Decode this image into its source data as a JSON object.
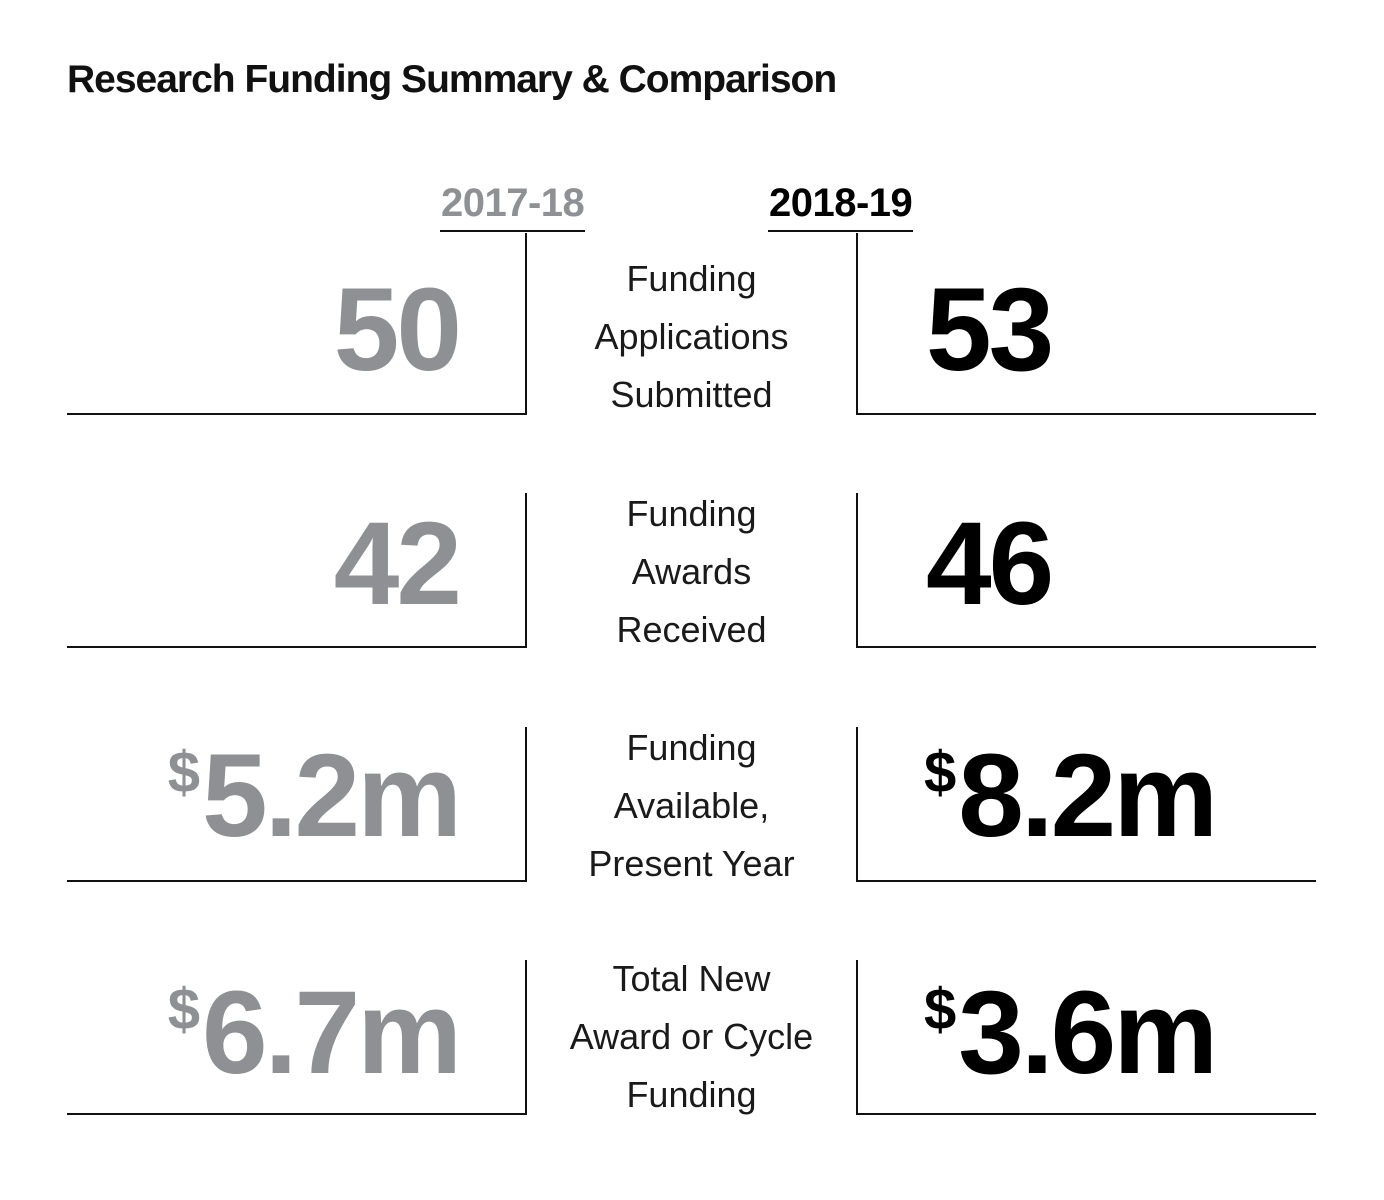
{
  "title": "Research Funding Summary & Comparison",
  "years": {
    "previous": "2017-18",
    "current": "2018-19"
  },
  "rows": [
    {
      "label_lines": [
        "Funding",
        "Applications",
        "Submitted"
      ],
      "prev": {
        "prefix": "",
        "number": "50"
      },
      "curr": {
        "prefix": "",
        "number": "53"
      }
    },
    {
      "label_lines": [
        "Funding",
        "Awards",
        "Received"
      ],
      "prev": {
        "prefix": "",
        "number": "42"
      },
      "curr": {
        "prefix": "",
        "number": "46"
      }
    },
    {
      "label_lines": [
        "Funding",
        "Available,",
        "Present Year"
      ],
      "prev": {
        "prefix": "$",
        "number": "5.2m"
      },
      "curr": {
        "prefix": "$",
        "number": "8.2m"
      }
    },
    {
      "label_lines": [
        "Total New",
        "Award or Cycle",
        "Funding"
      ],
      "prev": {
        "prefix": "$",
        "number": "6.7m"
      },
      "curr": {
        "prefix": "$",
        "number": "3.6m"
      }
    }
  ],
  "colors": {
    "previous": "#8e9093",
    "current": "#000000",
    "rule": "#111111"
  },
  "chart_data": {
    "type": "table",
    "title": "Research Funding Summary & Comparison",
    "columns": [
      "2017-18",
      "2018-19"
    ],
    "rows": [
      {
        "metric": "Funding Applications Submitted",
        "2017-18": 50,
        "2018-19": 53,
        "display": [
          "50",
          "53"
        ]
      },
      {
        "metric": "Funding Awards Received",
        "2017-18": 42,
        "2018-19": 46,
        "display": [
          "42",
          "46"
        ]
      },
      {
        "metric": "Funding Available, Present Year",
        "2017-18": 5.2,
        "2018-19": 8.2,
        "unit": "$m",
        "display": [
          "$5.2m",
          "$8.2m"
        ]
      },
      {
        "metric": "Total New Award or Cycle Funding",
        "2017-18": 6.7,
        "2018-19": 3.6,
        "unit": "$m",
        "display": [
          "$6.7m",
          "$3.6m"
        ]
      }
    ]
  }
}
